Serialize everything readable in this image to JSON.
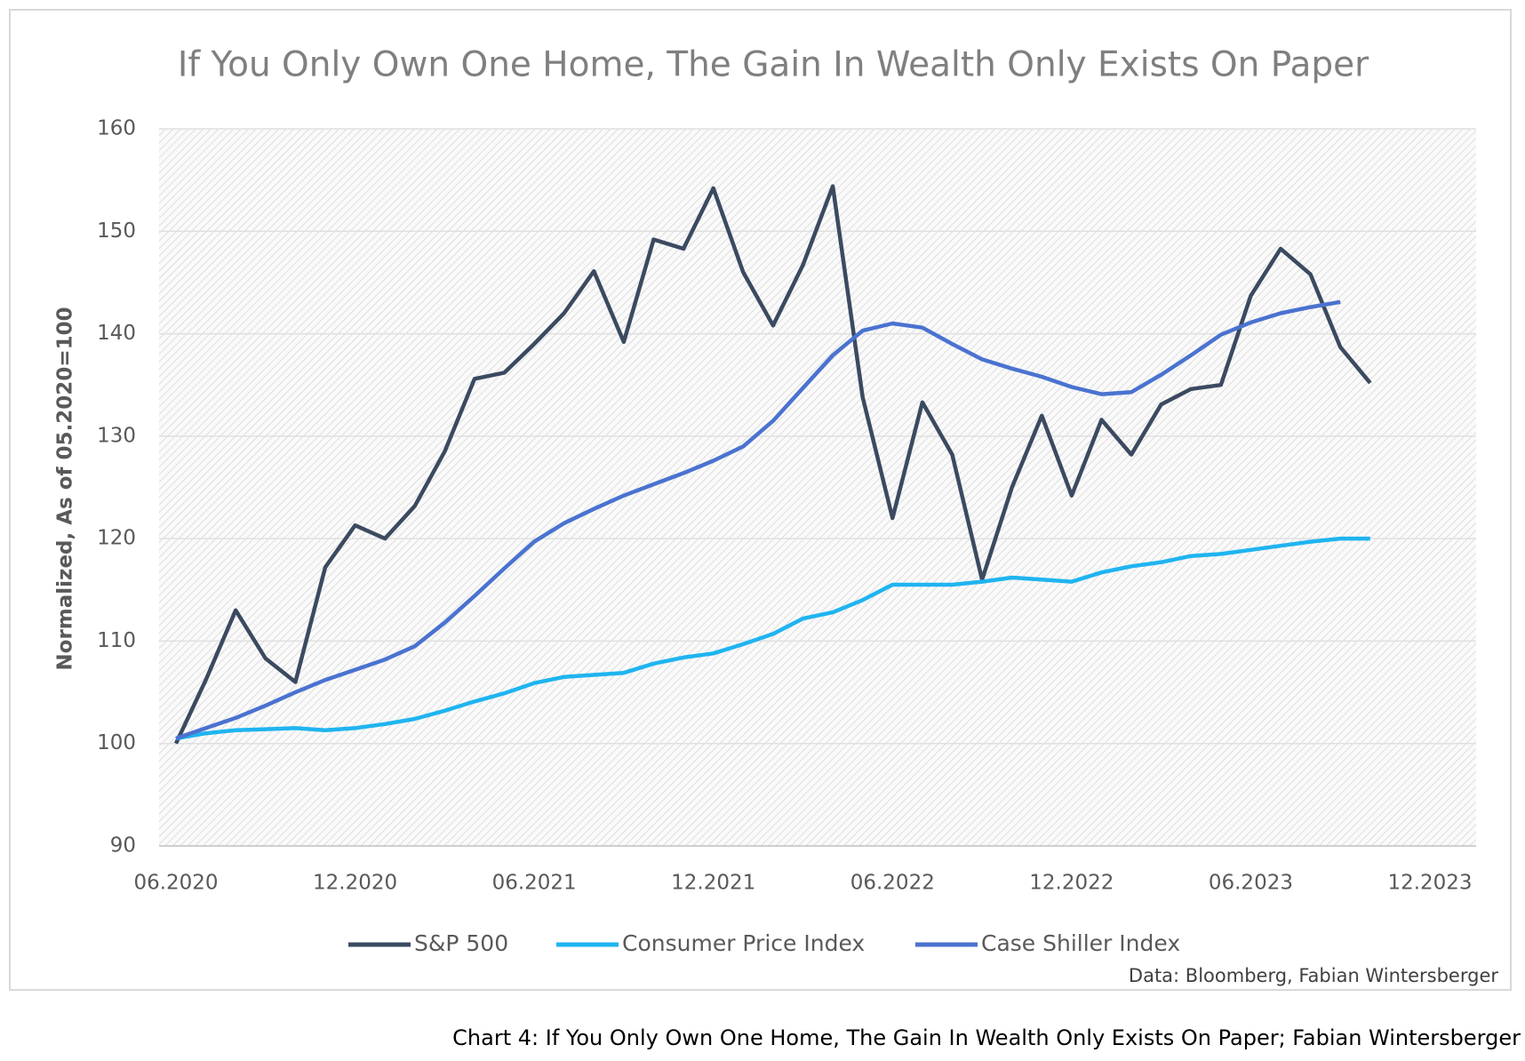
{
  "chart_data": {
    "type": "line",
    "title": "If You Only Own One Home, The Gain In Wealth Only Exists On Paper",
    "y_label": "Normalized, As of 05.2020=100",
    "source": "Data: Bloomberg, Fabian Wintersberger",
    "caption": "Chart 4: If You Only Own One Home, The Gain In Wealth Only Exists On Paper; Fabian Wintersberger",
    "x": [
      "06.2020",
      "07.2020",
      "08.2020",
      "09.2020",
      "10.2020",
      "11.2020",
      "12.2020",
      "01.2021",
      "02.2021",
      "03.2021",
      "04.2021",
      "05.2021",
      "06.2021",
      "07.2021",
      "08.2021",
      "09.2021",
      "10.2021",
      "11.2021",
      "12.2021",
      "01.2022",
      "02.2022",
      "03.2022",
      "04.2022",
      "05.2022",
      "06.2022",
      "07.2022",
      "08.2022",
      "09.2022",
      "10.2022",
      "11.2022",
      "12.2022",
      "01.2023",
      "02.2023",
      "03.2023",
      "04.2023",
      "05.2023",
      "06.2023",
      "07.2023",
      "08.2023",
      "09.2023",
      "10.2023"
    ],
    "series": [
      {
        "name": "S&P 500",
        "color": "#3b4a60",
        "values": [
          100,
          106.2,
          113,
          108.3,
          106,
          117.2,
          121.3,
          120,
          123.2,
          128.5,
          135.6,
          136.2,
          139,
          142,
          146.1,
          139.2,
          149.2,
          148.3,
          154.2,
          146,
          140.8,
          146.7,
          154.4,
          133.8,
          122,
          133.3,
          128.2,
          116,
          125,
          132,
          124.2,
          131.6,
          128.2,
          133.1,
          134.6,
          135,
          143.7,
          148.3,
          145.8,
          138.7,
          135.2
        ]
      },
      {
        "name": "Consumer Price Index",
        "color": "#1fb4f0",
        "values": [
          100.5,
          101,
          101.3,
          101.4,
          101.5,
          101.3,
          101.5,
          101.9,
          102.4,
          103.2,
          104.1,
          104.9,
          105.9,
          106.5,
          106.7,
          106.9,
          107.8,
          108.4,
          108.8,
          109.7,
          110.7,
          112.2,
          112.8,
          114,
          115.5,
          115.5,
          115.5,
          115.8,
          116.2,
          116,
          115.8,
          116.7,
          117.3,
          117.7,
          118.3,
          118.5,
          118.9,
          119.3,
          119.7,
          120,
          120
        ]
      },
      {
        "name": "Case Shiller Index",
        "color": "#4a72d0",
        "values": [
          100.5,
          101.5,
          102.5,
          103.7,
          105,
          106.2,
          107.2,
          108.2,
          109.5,
          111.8,
          114.4,
          117.1,
          119.7,
          121.5,
          122.9,
          124.2,
          125.3,
          126.4,
          127.6,
          129,
          131.5,
          134.7,
          137.9,
          140.3,
          141,
          140.6,
          139,
          137.5,
          136.6,
          135.8,
          134.8,
          134.1,
          134.3,
          136,
          137.9,
          139.9,
          141.1,
          142,
          142.6,
          143.1,
          null
        ]
      }
    ],
    "xlim": [
      "06.2020",
      "12.2023"
    ],
    "xticks": [
      "06.2020",
      "12.2020",
      "06.2021",
      "12.2021",
      "06.2022",
      "12.2022",
      "06.2023",
      "12.2023"
    ],
    "ylim": [
      90,
      160
    ],
    "yticks": [
      90,
      100,
      110,
      120,
      130,
      140,
      150,
      160
    ],
    "grid": true,
    "legend": "bottom"
  }
}
